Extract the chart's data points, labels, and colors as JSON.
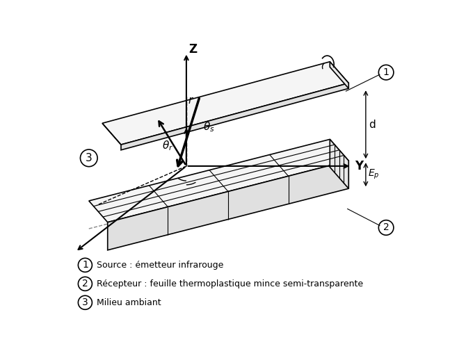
{
  "background_color": "#ffffff",
  "legend_items": [
    {
      "number": "1",
      "text": "Source : émetteur infrarouge"
    },
    {
      "number": "2",
      "text": "Récepteur : feuille thermoplastique mince semi-transparente"
    },
    {
      "number": "3",
      "text": "Milieu ambiant"
    }
  ],
  "labels": {
    "Z": "Z",
    "Y": "Y",
    "d": "d",
    "Ep": "$E_p$",
    "r": "r",
    "theta_r": "$\\theta_r$",
    "theta_s": "$\\theta_s$"
  },
  "colors": {
    "plate_face": "#f5f5f5",
    "plate_side": "#e0e0e0",
    "plate_edge": "#000000",
    "ray": "#000000",
    "axis": "#000000"
  }
}
